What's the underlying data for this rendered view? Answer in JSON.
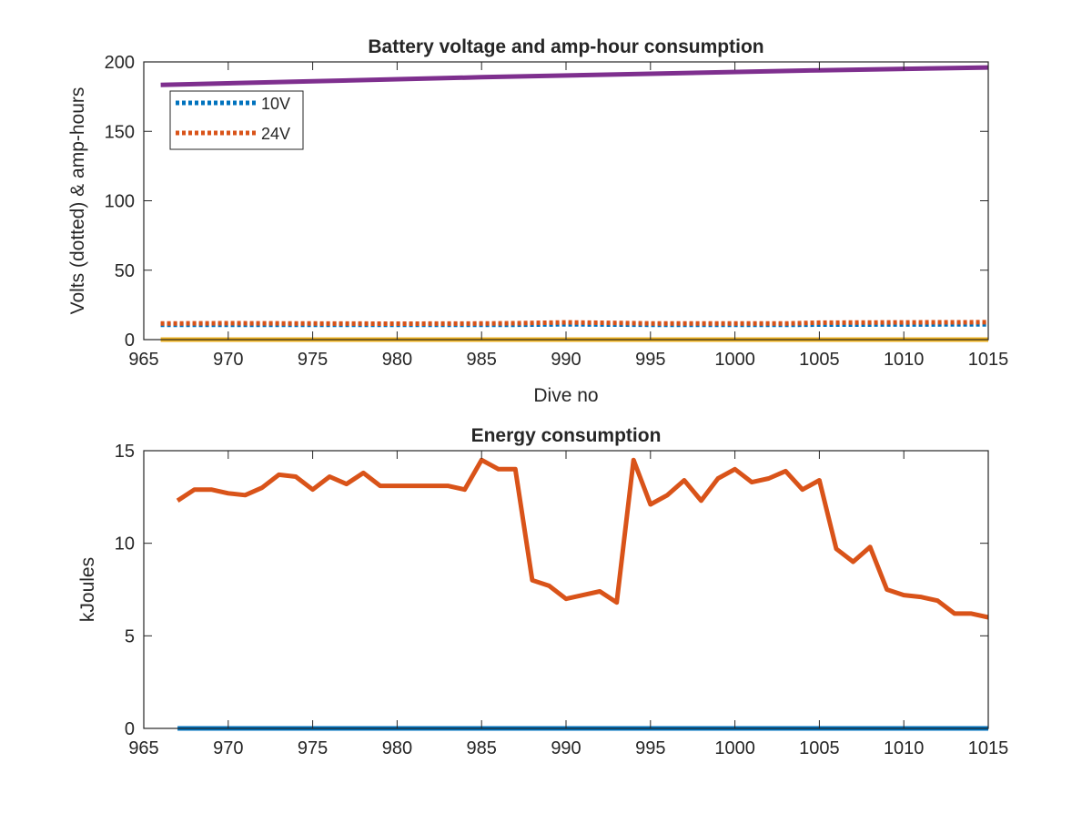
{
  "chart_data": [
    {
      "type": "line",
      "title": "Battery voltage and amp-hour consumption",
      "xlabel": "Dive no",
      "ylabel": "Volts (dotted) & amp-hours",
      "xlim": [
        965,
        1015
      ],
      "ylim": [
        0,
        200
      ],
      "xticks": [
        965,
        970,
        975,
        980,
        985,
        990,
        995,
        1000,
        1005,
        1010,
        1015
      ],
      "yticks": [
        0,
        50,
        100,
        150,
        200
      ],
      "grid": false,
      "legend_location": "top-left",
      "series": [
        {
          "name": "10V",
          "style": "dotted",
          "color": "#0072bd",
          "x": [
            966,
            970,
            975,
            980,
            985,
            987,
            990,
            993,
            995,
            1000,
            1003,
            1005,
            1010,
            1015
          ],
          "values": [
            10.6,
            10.6,
            10.6,
            10.6,
            10.6,
            10.7,
            11.0,
            10.8,
            10.7,
            10.6,
            10.6,
            10.8,
            10.9,
            11.0
          ]
        },
        {
          "name": "24V",
          "style": "dotted",
          "color": "#d95319",
          "x": [
            966,
            970,
            975,
            980,
            985,
            987,
            990,
            993,
            995,
            1000,
            1003,
            1005,
            1010,
            1015
          ],
          "values": [
            11.6,
            11.8,
            11.6,
            11.5,
            11.6,
            11.8,
            12.4,
            12.0,
            11.7,
            11.6,
            11.6,
            12.2,
            12.4,
            12.5
          ]
        },
        {
          "style": "solid",
          "color": "#edb120",
          "x": [
            966,
            1015
          ],
          "values": [
            0,
            0
          ]
        },
        {
          "style": "solid",
          "color": "#7e2f8e",
          "x": [
            966,
            975,
            985,
            995,
            1005,
            1015
          ],
          "values": [
            183.5,
            186,
            189,
            191.5,
            194,
            196
          ]
        }
      ]
    },
    {
      "type": "line",
      "title": "Energy consumption",
      "xlabel": "",
      "ylabel": "kJoules",
      "xlim": [
        965,
        1015
      ],
      "ylim": [
        0,
        15
      ],
      "xticks": [
        965,
        970,
        975,
        980,
        985,
        990,
        995,
        1000,
        1005,
        1010,
        1015
      ],
      "yticks": [
        0,
        5,
        10,
        15
      ],
      "grid": false,
      "series": [
        {
          "style": "solid",
          "color": "#0072bd",
          "x": [
            967,
            1015
          ],
          "values": [
            0,
            0
          ]
        },
        {
          "style": "solid",
          "color": "#d95319",
          "x": [
            967,
            968,
            969,
            970,
            971,
            972,
            973,
            974,
            975,
            976,
            977,
            978,
            979,
            980,
            981,
            982,
            983,
            984,
            985,
            986,
            987,
            988,
            989,
            990,
            991,
            992,
            993,
            994,
            995,
            996,
            997,
            998,
            999,
            1000,
            1001,
            1002,
            1003,
            1004,
            1005,
            1006,
            1007,
            1008,
            1009,
            1010,
            1011,
            1012,
            1013,
            1014,
            1015
          ],
          "values": [
            12.3,
            12.9,
            12.9,
            12.7,
            12.6,
            13.0,
            13.7,
            13.6,
            12.9,
            13.6,
            13.2,
            13.8,
            13.1,
            13.1,
            13.1,
            13.1,
            13.1,
            12.9,
            14.5,
            14.0,
            14.0,
            8.0,
            7.7,
            7.0,
            7.2,
            7.4,
            6.8,
            14.5,
            12.1,
            12.6,
            13.4,
            12.3,
            13.5,
            14.0,
            13.3,
            13.5,
            13.9,
            12.9,
            13.4,
            9.7,
            9.0,
            9.8,
            7.5,
            7.2,
            7.1,
            6.9,
            6.2,
            6.2,
            6.0
          ]
        }
      ]
    }
  ]
}
